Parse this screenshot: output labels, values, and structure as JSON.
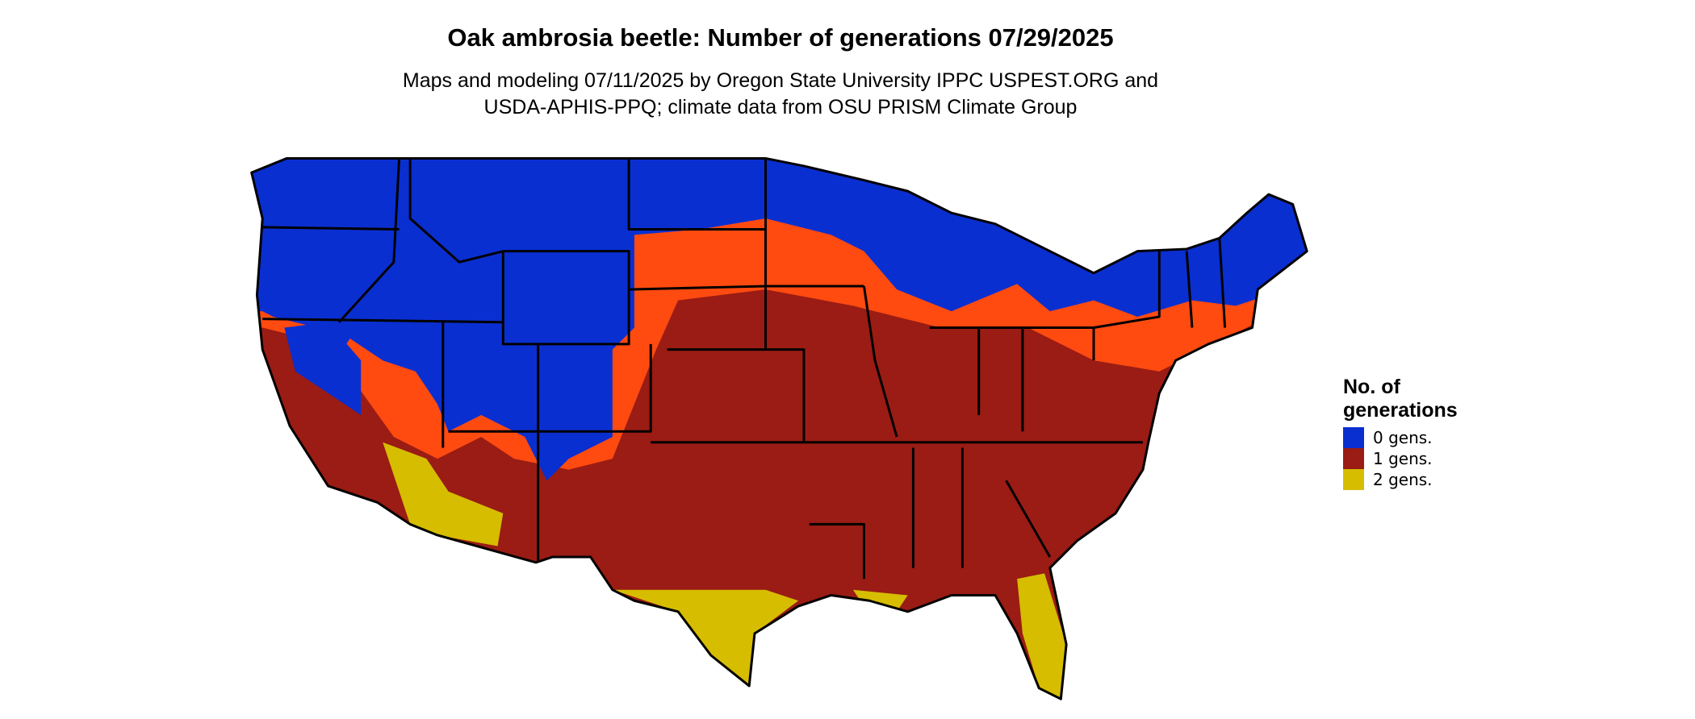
{
  "title": "Oak ambrosia beetle: Number of generations 07/29/2025",
  "subtitle": [
    "Maps and modeling 07/11/2025 by Oregon State University IPPC USPEST.ORG and",
    "USDA-APHIS-PPQ; climate data from OSU PRISM Climate Group"
  ],
  "legend": {
    "title": [
      "No. of",
      "generations"
    ],
    "items": [
      {
        "label": "0 gens.",
        "color": "#0a2fd0"
      },
      {
        "label": "1 gens.",
        "color": "#9a1c14"
      },
      {
        "label": "2 gens.",
        "color": "#d6bd00"
      }
    ]
  }
}
